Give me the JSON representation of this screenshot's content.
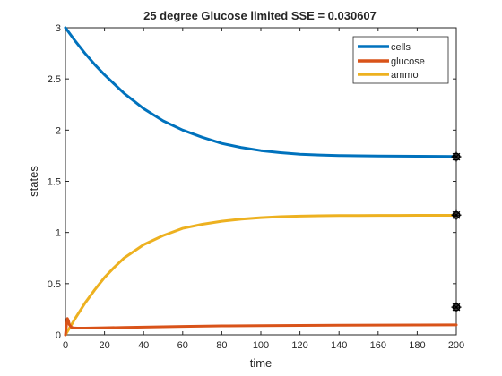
{
  "chart_data": {
    "type": "line",
    "title": "25 degree Glucose limited  SSE = 0.030607",
    "xlabel": "time",
    "ylabel": "states",
    "xlim": [
      0,
      200
    ],
    "ylim": [
      0,
      3
    ],
    "xticks": [
      0,
      20,
      40,
      60,
      80,
      100,
      120,
      140,
      160,
      180,
      200
    ],
    "yticks": [
      0,
      0.5,
      1,
      1.5,
      2,
      2.5,
      3
    ],
    "ytick_labels": [
      "0",
      "0.5",
      "1",
      "1.5",
      "2",
      "2.5",
      "3"
    ],
    "grid": false,
    "legend_position": "top-right",
    "series": [
      {
        "name": "cells",
        "color": "#0072BD",
        "x": [
          0,
          5,
          10,
          15,
          20,
          25,
          30,
          40,
          50,
          60,
          70,
          80,
          90,
          100,
          110,
          120,
          130,
          140,
          150,
          160,
          170,
          180,
          190,
          200
        ],
        "y": [
          3.0,
          2.87,
          2.75,
          2.64,
          2.54,
          2.45,
          2.36,
          2.21,
          2.09,
          2.0,
          1.93,
          1.87,
          1.83,
          1.8,
          1.78,
          1.765,
          1.757,
          1.752,
          1.749,
          1.747,
          1.746,
          1.745,
          1.744,
          1.743
        ]
      },
      {
        "name": "glucose",
        "color": "#D95319",
        "x": [
          0,
          0.5,
          1,
          1.5,
          2,
          3,
          4,
          6,
          10,
          20,
          30,
          40,
          60,
          80,
          100,
          120,
          140,
          160,
          180,
          200
        ],
        "y": [
          0.0,
          0.09,
          0.16,
          0.14,
          0.1,
          0.075,
          0.068,
          0.066,
          0.066,
          0.069,
          0.072,
          0.075,
          0.082,
          0.087,
          0.09,
          0.092,
          0.094,
          0.095,
          0.096,
          0.097
        ]
      },
      {
        "name": "ammo",
        "color": "#EDB120",
        "x": [
          0,
          5,
          10,
          15,
          20,
          25,
          30,
          40,
          50,
          60,
          70,
          80,
          90,
          100,
          110,
          120,
          130,
          140,
          150,
          160,
          170,
          180,
          190,
          200
        ],
        "y": [
          0.0,
          0.16,
          0.31,
          0.44,
          0.56,
          0.66,
          0.75,
          0.88,
          0.97,
          1.04,
          1.08,
          1.11,
          1.13,
          1.145,
          1.155,
          1.16,
          1.163,
          1.165,
          1.166,
          1.167,
          1.167,
          1.168,
          1.168,
          1.168
        ]
      }
    ],
    "markers": {
      "symbol": "circle-star",
      "color": "#000000",
      "points": [
        {
          "x": 200,
          "y": 1.74
        },
        {
          "x": 200,
          "y": 1.17
        },
        {
          "x": 200,
          "y": 0.27
        }
      ]
    }
  }
}
